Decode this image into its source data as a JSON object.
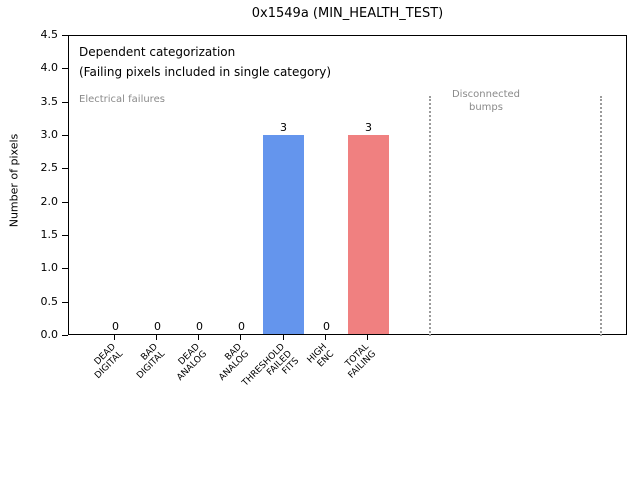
{
  "chart_data": {
    "type": "bar",
    "title": "0x1549a (MIN_HEALTH_TEST)",
    "xlabel": "",
    "ylabel": "Number of pixels",
    "categories": [
      "DEAD DIGITAL",
      "BAD DIGITAL",
      "DEAD ANALOG",
      "BAD ANALOG",
      "THRESHOLD FAILED FITS",
      "HIGH ENC",
      "TOTAL FAILING"
    ],
    "values": [
      0,
      0,
      0,
      0,
      3,
      0,
      3
    ],
    "bar_colors": [
      null,
      null,
      null,
      null,
      "#6495ed",
      null,
      "#f08080"
    ],
    "ylim": [
      0,
      4.5
    ],
    "ytick_step": 0.5,
    "grid": false,
    "legend": false,
    "annotations": [
      "Dependent categorization",
      "(Failing pixels included in single category)",
      "Electrical failures",
      "Disconnected bumps"
    ],
    "vlines": {
      "count": 2,
      "style": "dotted",
      "color": "#9b9b9b",
      "region_label": "Disconnected bumps"
    }
  },
  "title": "0x1549a (MIN_HEALTH_TEST)",
  "y_axis": {
    "label": "Number of pixels",
    "ticks": [
      "0.0",
      "0.5",
      "1.0",
      "1.5",
      "2.0",
      "2.5",
      "3.0",
      "3.5",
      "4.0",
      "4.5"
    ]
  },
  "x_axis": {
    "categories": [
      {
        "lines": [
          "DEAD",
          "DIGITAL"
        ]
      },
      {
        "lines": [
          "BAD",
          "DIGITAL"
        ]
      },
      {
        "lines": [
          "DEAD",
          "ANALOG"
        ]
      },
      {
        "lines": [
          "BAD",
          "ANALOG"
        ]
      },
      {
        "lines": [
          "THRESHOLD",
          "FAILED",
          "FITS"
        ]
      },
      {
        "lines": [
          "HIGH",
          "ENC"
        ]
      },
      {
        "lines": [
          "TOTAL",
          "FAILING"
        ]
      }
    ]
  },
  "annotations": {
    "dependent_line1": "Dependent categorization",
    "dependent_line2": "(Failing pixels included in single category)",
    "electrical": "Electrical failures",
    "disconnected_line1": "Disconnected",
    "disconnected_line2": "bumps"
  },
  "colors": {
    "bar_blue": "#6495ed",
    "bar_red": "#f08080",
    "annotation_gray": "#8a8a8a",
    "dotted_line_gray": "#9b9b9b"
  }
}
